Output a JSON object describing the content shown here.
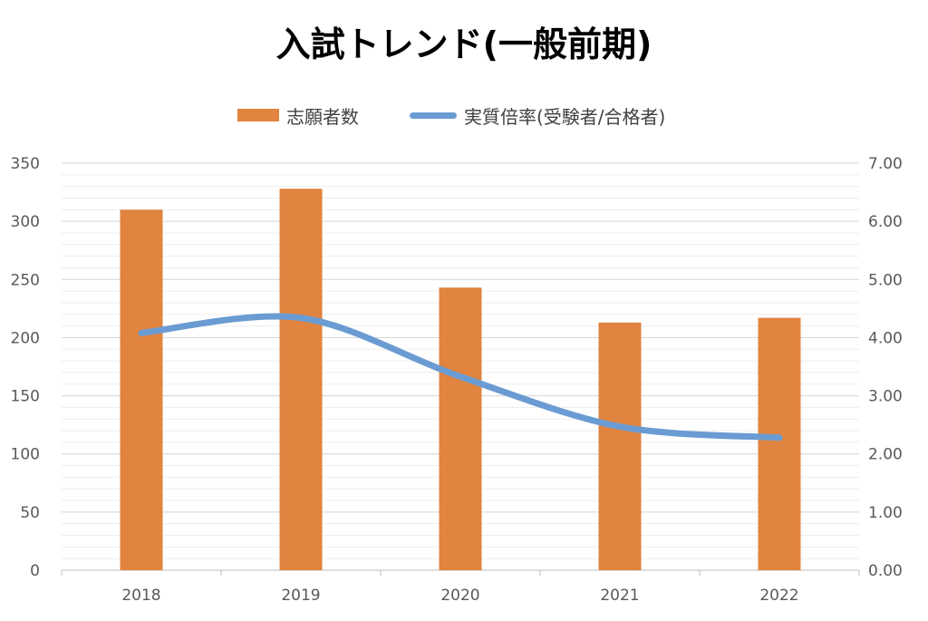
{
  "chart_data": {
    "type": "bar",
    "title": "入試トレンド(一般前期)",
    "categories": [
      "2018",
      "2019",
      "2020",
      "2021",
      "2022"
    ],
    "series": [
      {
        "name": "志願者数",
        "type": "bar",
        "axis": "left",
        "color": "#E0843F",
        "values": [
          310,
          328,
          243,
          213,
          217
        ]
      },
      {
        "name": "実質倍率(受験者/合格者)",
        "type": "line",
        "axis": "right",
        "color": "#6A9BD2",
        "values": [
          4.08,
          4.34,
          3.33,
          2.47,
          2.28
        ]
      }
    ],
    "y_left": {
      "ylim": [
        0,
        350
      ],
      "ticks": [
        "0",
        "50",
        "100",
        "150",
        "200",
        "250",
        "300",
        "350"
      ]
    },
    "y_right": {
      "ylim": [
        0,
        7
      ],
      "ticks": [
        "0.00",
        "1.00",
        "2.00",
        "3.00",
        "4.00",
        "5.00",
        "6.00",
        "7.00"
      ]
    },
    "grid": true,
    "legend_position": "top"
  }
}
